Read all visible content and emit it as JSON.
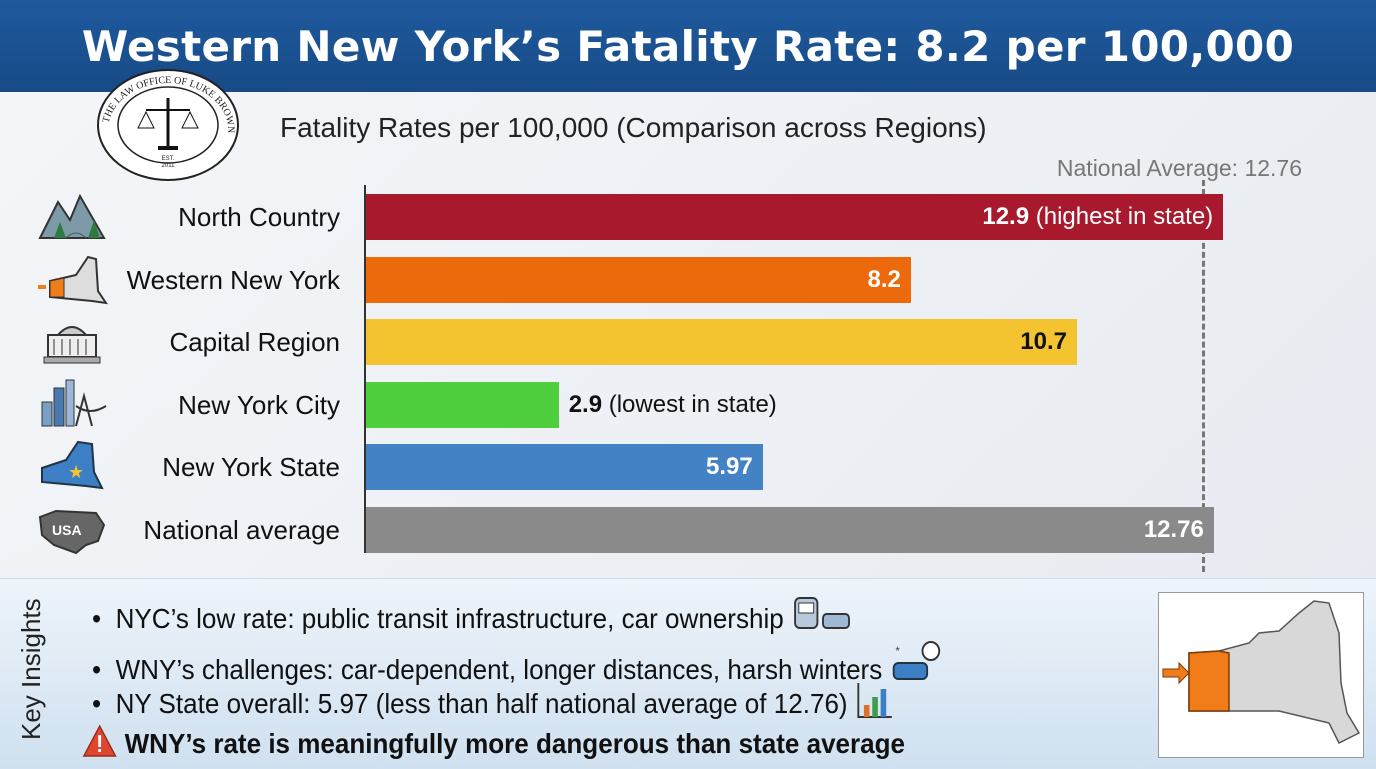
{
  "header": {
    "title": "Western New York’s Fatality Rate: 8.2 per 100,000"
  },
  "logo": {
    "text": "The Law Office of Luke Brown",
    "est": "EST. 2011"
  },
  "chart_data": {
    "type": "bar",
    "orientation": "horizontal",
    "title": "Fatality Rates per 100,000 (Comparison across Regions)",
    "categories": [
      "North Country",
      "Western New York",
      "Capital Region",
      "New York City",
      "New York State",
      "National average"
    ],
    "values": [
      12.9,
      8.2,
      10.7,
      2.9,
      5.97,
      12.76
    ],
    "data_labels": [
      "12.9",
      "8.2",
      "10.7",
      "2.9",
      "5.97",
      "12.76"
    ],
    "annotations": [
      "(highest in state)",
      "",
      "",
      "(lowest in state)",
      "",
      ""
    ],
    "colors": [
      "#a8192e",
      "#ec6a0c",
      "#f4c430",
      "#4fcf3e",
      "#4382c4",
      "#8a8a8a"
    ],
    "icons": [
      "mountains-icon",
      "ny-map-wny-icon",
      "capitol-icon",
      "city-skyline-icon",
      "ny-state-star-icon",
      "usa-map-icon"
    ],
    "reference_line": {
      "label": "National Average: 12.76",
      "value": 12.76
    },
    "xlim": [
      0,
      15.2
    ],
    "grid": false
  },
  "insights": {
    "heading": "Key Insights",
    "bullets": [
      {
        "text": "NYC’s low rate: public transit infrastructure, car ownership",
        "icon": "train-car-icon"
      },
      {
        "text": "WNY’s challenges: car-dependent, longer distances, harsh winters",
        "icon": "snow-car-icon"
      },
      {
        "text": "NY State overall: 5.97 (less than half national average of 12.76)",
        "icon": "bar-chart-icon"
      }
    ],
    "warning": {
      "text": "WNY’s rate is meaningfully more dangerous than state average",
      "icon": "warning-icon"
    },
    "map": {
      "icon": "ny-map-wny-highlight-icon",
      "highlight_color": "#f07d1a"
    }
  }
}
